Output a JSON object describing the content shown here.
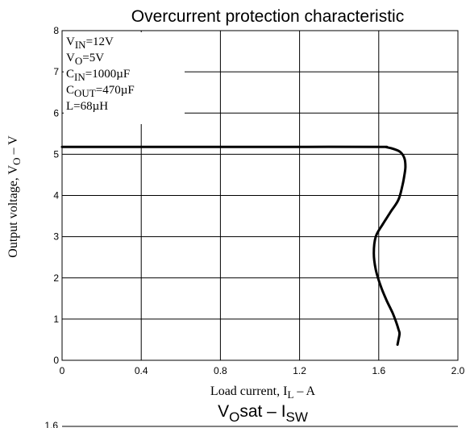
{
  "chart_data": {
    "type": "line",
    "title": "Overcurrent protection characteristic",
    "xlabel": {
      "main": "Load current, I",
      "sub": "L",
      "tail": " – A"
    },
    "ylabel": {
      "main": "Output voltage, V",
      "sub": "O",
      "tail": " – V"
    },
    "xlim": [
      0,
      2.0
    ],
    "ylim": [
      0,
      8
    ],
    "x_ticks": [
      "0",
      "0.4",
      "0.8",
      "1.2",
      "1.6",
      "2.0"
    ],
    "y_ticks": [
      "0",
      "1",
      "2",
      "3",
      "4",
      "5",
      "6",
      "7",
      "8"
    ],
    "grid": true,
    "conditions": [
      {
        "main": "V",
        "sub": "IN",
        "value": "=12V"
      },
      {
        "main": "V",
        "sub": "O",
        "value": "=5V"
      },
      {
        "main": "C",
        "sub": "IN",
        "value": "=1000µF"
      },
      {
        "main": "C",
        "sub": "OUT",
        "value": "=470µF"
      },
      {
        "main": "L",
        "sub": "",
        "value": "=68µH"
      }
    ],
    "series": [
      {
        "x": [
          0,
          0.4,
          0.8,
          1.2,
          1.6,
          1.64,
          1.68,
          1.71,
          1.73,
          1.735,
          1.73,
          1.72,
          1.7,
          1.66,
          1.62,
          1.585,
          1.575,
          1.585,
          1.61,
          1.64,
          1.67,
          1.69,
          1.7,
          1.705,
          1.7,
          1.695
        ],
        "y": [
          5.18,
          5.18,
          5.18,
          5.18,
          5.18,
          5.17,
          5.12,
          5.05,
          4.9,
          4.7,
          4.5,
          4.25,
          3.9,
          3.6,
          3.3,
          3.0,
          2.6,
          2.2,
          1.8,
          1.45,
          1.15,
          0.9,
          0.75,
          0.65,
          0.5,
          0.38
        ]
      }
    ]
  },
  "second_chart": {
    "title": {
      "main": "V",
      "sub1": "O",
      "mid": "sat – I",
      "sub2": "SW"
    },
    "first_tick": "1.6"
  }
}
